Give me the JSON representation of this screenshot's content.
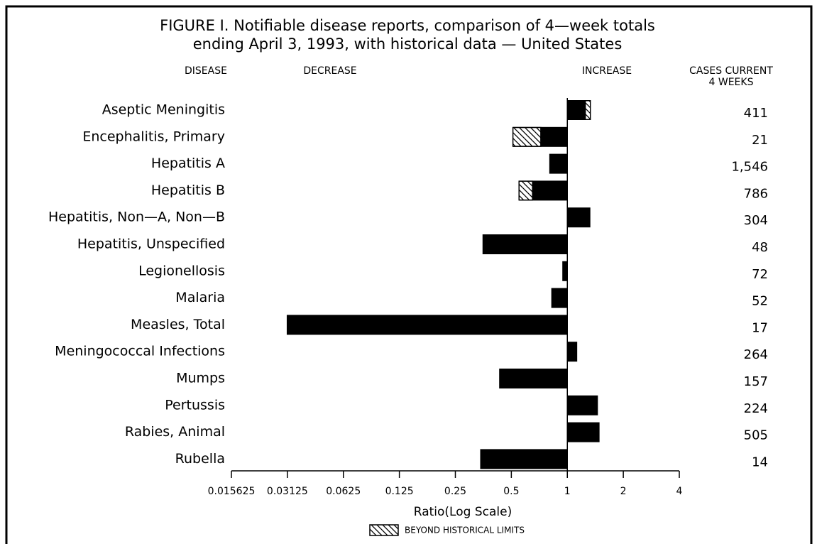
{
  "chart_data": {
    "type": "bar",
    "title": [
      "FIGURE I.  Notifiable disease reports, comparison of 4—week totals",
      "ending April 3, 1993, with historical data — United States"
    ],
    "headers": {
      "disease": "DISEASE",
      "decrease": "DECREASE",
      "increase": "INCREASE",
      "cases": [
        "CASES CURRENT",
        "4 WEEKS"
      ]
    },
    "categories": [
      "Aseptic Meningitis",
      "Encephalitis, Primary",
      "Hepatitis A",
      "Hepatitis B",
      "Hepatitis, Non—A, Non—B",
      "Hepatitis, Unspecified",
      "Legionellosis",
      "Malaria",
      "Measles, Total",
      "Meningococcal Infections",
      "Mumps",
      "Pertussis",
      "Rabies, Animal",
      "Rubella"
    ],
    "values": [
      1.33,
      0.51,
      0.8,
      0.55,
      1.33,
      0.35,
      0.94,
      0.82,
      0.031,
      1.13,
      0.43,
      1.46,
      1.49,
      0.34
    ],
    "historical_limits": [
      1.25,
      0.72,
      null,
      0.65,
      null,
      null,
      null,
      null,
      null,
      null,
      null,
      null,
      null,
      null
    ],
    "cases": {
      "values": [
        411,
        21,
        1546,
        786,
        304,
        48,
        72,
        52,
        17,
        264,
        157,
        224,
        505,
        14
      ],
      "value_labels": [
        "411",
        "21",
        "1,546",
        "786",
        "304",
        "48",
        "72",
        "52",
        "17",
        "264",
        "157",
        "224",
        "505",
        "14"
      ]
    },
    "color": "#000000",
    "log_scale": true,
    "log_base": 2,
    "xlim": [
      0.015625,
      4
    ],
    "xticks": [
      0.015625,
      0.03125,
      0.0625,
      0.125,
      0.25,
      0.5,
      1,
      2,
      4
    ],
    "xlabel": "Ratio(Log Scale)",
    "legend": "BEYOND HISTORICAL LIMITS"
  }
}
